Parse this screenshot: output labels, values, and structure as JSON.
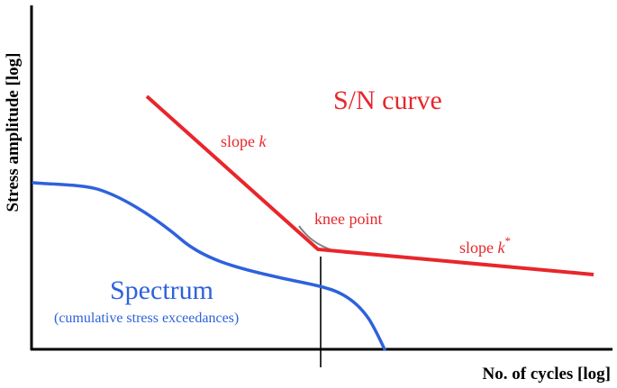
{
  "axes": {
    "x_label": "No. of cycles [log]",
    "y_label": "Stress amplitude [log]"
  },
  "sn_curve": {
    "title": "S/N curve",
    "slope_label_prefix": "slope ",
    "slope_symbol": "k",
    "knee_label": "knee point",
    "slope2_label_prefix": "slope ",
    "slope2_symbol": "k",
    "slope2_superscript": "*"
  },
  "spectrum": {
    "title": "Spectrum",
    "subtitle": "(cumulative stress exceedances)"
  },
  "colors": {
    "sn_curve": "#e8262b",
    "spectrum": "#2e62dc",
    "knee_transition": "#808080",
    "axes": "#000000"
  }
}
